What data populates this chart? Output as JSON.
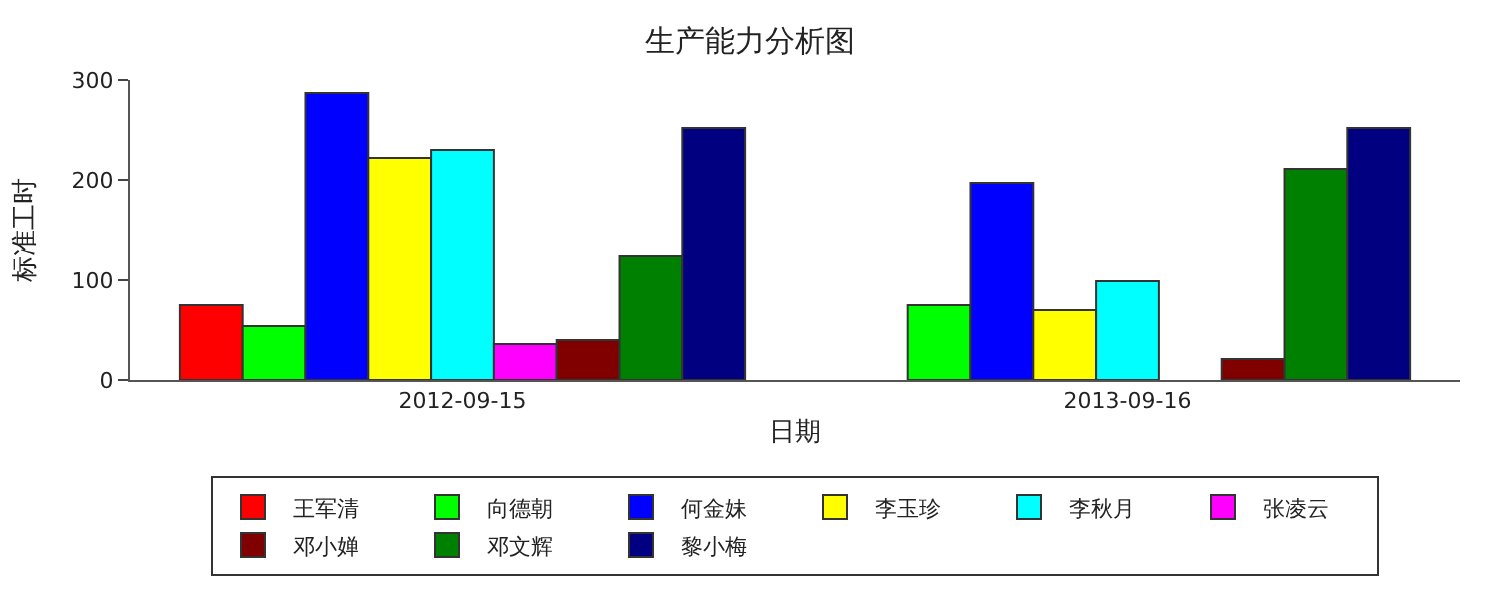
{
  "chart_data": {
    "type": "bar",
    "title": "生产能力分析图",
    "xlabel": "日期",
    "ylabel": "标准工时",
    "categories": [
      "2012-09-15",
      "2013-09-16"
    ],
    "ylim": [
      0,
      300
    ],
    "yticks": [
      0,
      100,
      200,
      300
    ],
    "legend": "bottom",
    "series": [
      {
        "name": "王军清",
        "color": "#ff0000",
        "values": [
          75,
          null
        ]
      },
      {
        "name": "向德朝",
        "color": "#00ff00",
        "values": [
          54,
          75
        ]
      },
      {
        "name": "何金妹",
        "color": "#0000ff",
        "values": [
          287,
          197
        ]
      },
      {
        "name": "李玉珍",
        "color": "#ffff00",
        "values": [
          222,
          70
        ]
      },
      {
        "name": "李秋月",
        "color": "#00ffff",
        "values": [
          230,
          99
        ]
      },
      {
        "name": "张凌云",
        "color": "#ff00ff",
        "values": [
          36,
          null
        ]
      },
      {
        "name": "邓小婵",
        "color": "#800000",
        "values": [
          40,
          21
        ]
      },
      {
        "name": "邓文辉",
        "color": "#008000",
        "values": [
          124,
          211
        ]
      },
      {
        "name": "黎小梅",
        "color": "#000080",
        "values": [
          252,
          252
        ]
      }
    ]
  }
}
